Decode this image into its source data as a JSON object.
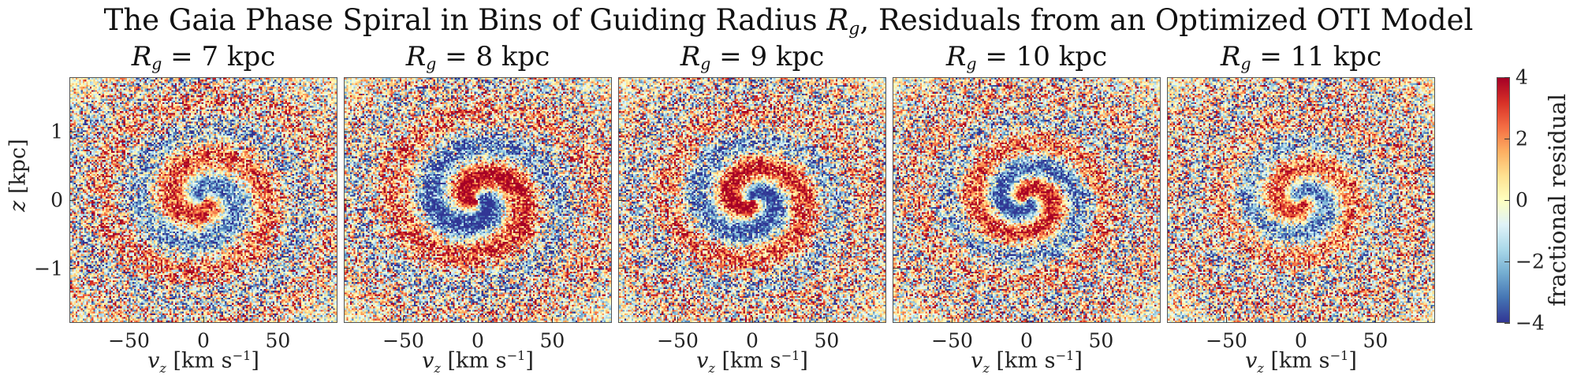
{
  "chart_data": {
    "type": "heatmap",
    "title_text": "The Gaia Phase Spiral in Bins of Guiding Radius ",
    "title_symbol": "R",
    "title_subscript": "g",
    "title_suffix": ", Residuals from an Optimized OTI Model",
    "xlabel_symbol": "v",
    "xlabel_subscript": "z",
    "xlabel_unit": " [km s",
    "xlabel_unit_exp": "−1",
    "xlabel_unit_close": "]",
    "ylabel_symbol": "z",
    "ylabel_unit": " [kpc]",
    "xlim": [
      -90,
      90
    ],
    "ylim": [
      -1.8,
      1.8
    ],
    "xticks": [
      -50,
      0,
      50
    ],
    "xtick_labels": [
      "−50",
      "0",
      "50"
    ],
    "yticks": [
      1,
      0,
      -1
    ],
    "ytick_labels": [
      "1",
      "0",
      "−1"
    ],
    "panels": [
      {
        "label_symbol": "R",
        "label_subscript": "g",
        "label_value": " = 7 kpc",
        "guiding_radius_kpc": 7
      },
      {
        "label_symbol": "R",
        "label_subscript": "g",
        "label_value": " = 8 kpc",
        "guiding_radius_kpc": 8
      },
      {
        "label_symbol": "R",
        "label_subscript": "g",
        "label_value": " = 9 kpc",
        "guiding_radius_kpc": 9
      },
      {
        "label_symbol": "R",
        "label_subscript": "g",
        "label_value": " = 10 kpc",
        "guiding_radius_kpc": 10
      },
      {
        "label_symbol": "R",
        "label_subscript": "g",
        "label_value": " = 11 kpc",
        "guiding_radius_kpc": 11
      }
    ],
    "colorbar": {
      "label": "fractional residual",
      "range": [
        -4,
        4
      ],
      "ticks": [
        4,
        2,
        0,
        -2,
        -4
      ],
      "tick_labels": [
        "4",
        "2",
        "0",
        "−2",
        "−4"
      ],
      "colormap": "RdYlBu_r",
      "colors": [
        "#313695",
        "#4575b4",
        "#74add1",
        "#abd9e9",
        "#e0f3f8",
        "#ffffbf",
        "#fee090",
        "#fdae61",
        "#f46d43",
        "#d73027",
        "#a50026"
      ]
    }
  }
}
